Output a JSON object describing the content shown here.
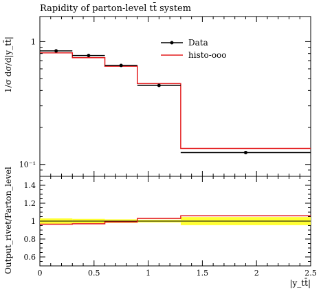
{
  "chart_data": [
    {
      "type": "line",
      "title": "Rapidity of parton-level tt̄ system",
      "ylabel": "1/σ dσ/d|y_tt̄|",
      "xlabel": "",
      "yscale": "log",
      "xlim": [
        0,
        2.5
      ],
      "ylim": [
        0.08,
        1.6
      ],
      "y_ticks": [
        {
          "value": 1,
          "label": "1"
        },
        {
          "value": 0.1,
          "label": "10⁻¹"
        }
      ],
      "legend_position": "top-right",
      "series": [
        {
          "name": "Data",
          "color": "#000000",
          "style": "points-with-xerr",
          "bins": [
            {
              "x_low": 0.0,
              "x_high": 0.3,
              "x": 0.15,
              "y": 0.84
            },
            {
              "x_low": 0.3,
              "x_high": 0.6,
              "x": 0.45,
              "y": 0.77
            },
            {
              "x_low": 0.6,
              "x_high": 0.9,
              "x": 0.75,
              "y": 0.64
            },
            {
              "x_low": 0.9,
              "x_high": 1.3,
              "x": 1.1,
              "y": 0.44
            },
            {
              "x_low": 1.3,
              "x_high": 2.5,
              "x": 1.9,
              "y": 0.125
            }
          ]
        },
        {
          "name": "histo-ooo",
          "color": "#e31a1c",
          "style": "step",
          "bins": [
            {
              "x_low": 0.0,
              "x_high": 0.3,
              "y": 0.81
            },
            {
              "x_low": 0.3,
              "x_high": 0.6,
              "y": 0.74
            },
            {
              "x_low": 0.6,
              "x_high": 0.9,
              "y": 0.63
            },
            {
              "x_low": 0.9,
              "x_high": 1.3,
              "y": 0.455
            },
            {
              "x_low": 1.3,
              "x_high": 2.5,
              "y": 0.135
            }
          ]
        }
      ]
    },
    {
      "type": "line",
      "title": "",
      "ylabel": "Output_rivet/Parton_level",
      "xlabel": "|y_tt̄|",
      "xlim": [
        0,
        2.5
      ],
      "ylim": [
        0.5,
        1.5
      ],
      "x_ticks": [
        {
          "value": 0,
          "label": "0"
        },
        {
          "value": 0.5,
          "label": "0.5"
        },
        {
          "value": 1,
          "label": "1"
        },
        {
          "value": 1.5,
          "label": "1.5"
        },
        {
          "value": 2,
          "label": "2"
        },
        {
          "value": 2.5,
          "label": "2.5"
        }
      ],
      "y_ticks": [
        {
          "value": 0.6,
          "label": "0.6"
        },
        {
          "value": 0.8,
          "label": "0.8"
        },
        {
          "value": 1.0,
          "label": "1"
        },
        {
          "value": 1.2,
          "label": "1.2"
        },
        {
          "value": 1.4,
          "label": "1.4"
        }
      ],
      "band_color": "#ffff33",
      "band": [
        {
          "x_low": 0.0,
          "x_high": 0.3,
          "low": 0.97,
          "high": 1.03
        },
        {
          "x_low": 0.3,
          "x_high": 0.6,
          "low": 0.975,
          "high": 1.025
        },
        {
          "x_low": 0.6,
          "x_high": 0.9,
          "low": 0.98,
          "high": 1.02
        },
        {
          "x_low": 0.9,
          "x_high": 1.3,
          "low": 0.985,
          "high": 1.015
        },
        {
          "x_low": 1.3,
          "x_high": 2.5,
          "low": 0.955,
          "high": 1.045
        }
      ],
      "series": [
        {
          "name": "Data",
          "color": "#000000",
          "style": "step",
          "bins": [
            {
              "x_low": 0.0,
              "x_high": 2.5,
              "y": 1.0
            }
          ]
        },
        {
          "name": "histo-ooo",
          "color": "#e31a1c",
          "style": "step",
          "bins": [
            {
              "x_low": 0.0,
              "x_high": 0.3,
              "y": 0.965
            },
            {
              "x_low": 0.3,
              "x_high": 0.6,
              "y": 0.97
            },
            {
              "x_low": 0.6,
              "x_high": 0.9,
              "y": 0.99
            },
            {
              "x_low": 0.9,
              "x_high": 1.3,
              "y": 1.03
            },
            {
              "x_low": 1.3,
              "x_high": 2.5,
              "y": 1.06
            }
          ]
        }
      ]
    }
  ]
}
